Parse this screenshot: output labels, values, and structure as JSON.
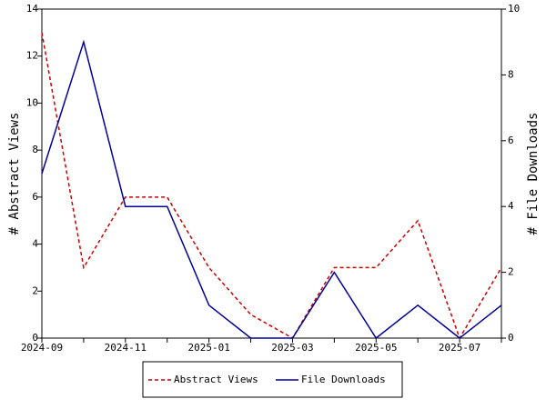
{
  "chart_data": {
    "type": "line",
    "categories": [
      "2024-09",
      null,
      "2024-11",
      null,
      "2025-01",
      null,
      "2025-03",
      null,
      "2025-05",
      null,
      "2025-07",
      null
    ],
    "y_label": "# Abstract Views",
    "y2_label": "# File Downloads",
    "ylim": [
      0,
      14
    ],
    "yticks": [
      0,
      2,
      4,
      6,
      8,
      10,
      12,
      14
    ],
    "y2lim": [
      0,
      10
    ],
    "y2ticks": [
      0,
      2,
      4,
      6,
      8,
      10
    ],
    "grid": false,
    "legend": "bottom",
    "series": [
      {
        "name": "Abstract Views",
        "color": "#cc0000",
        "dash": true,
        "values": [
          13,
          3,
          6,
          6,
          3,
          1,
          0,
          3,
          3,
          5,
          0,
          3
        ]
      },
      {
        "name": "File Downloads",
        "color": "#000099",
        "dash": false,
        "axis": "y2",
        "values": [
          5,
          9,
          4,
          4,
          1,
          0,
          0,
          2,
          0,
          1,
          0,
          1
        ]
      }
    ]
  }
}
